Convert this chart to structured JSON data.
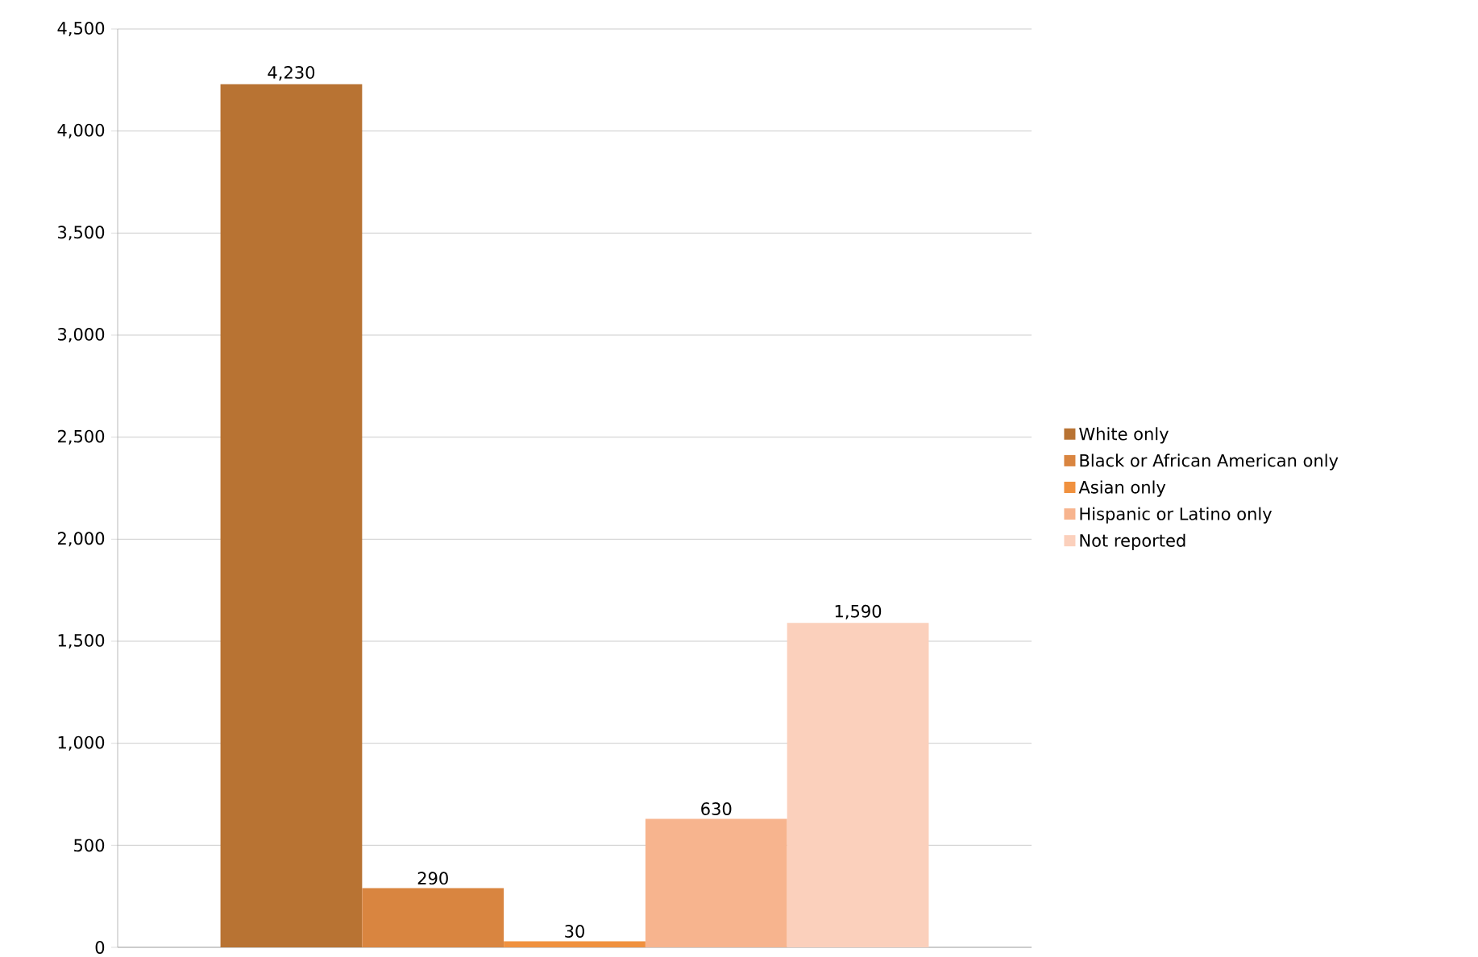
{
  "chart_data": {
    "type": "bar",
    "categories": [
      null
    ],
    "series": [
      {
        "name": "White only",
        "color": "#b87333",
        "values": [
          4230
        ],
        "value_labels": [
          "4,230"
        ]
      },
      {
        "name": "Black or African American only",
        "color": "#d98540",
        "values": [
          290
        ],
        "value_labels": [
          "290"
        ]
      },
      {
        "name": "Asian only",
        "color": "#f0913f",
        "values": [
          30
        ],
        "value_labels": [
          "30"
        ]
      },
      {
        "name": "Hispanic or Latino only",
        "color": "#f7b48e",
        "values": [
          630
        ],
        "value_labels": [
          "630"
        ]
      },
      {
        "name": "Not reported",
        "color": "#fbd0bc",
        "values": [
          1590
        ],
        "value_labels": [
          "1,590"
        ]
      }
    ],
    "ylim": [
      0,
      4500
    ],
    "yticks": [
      0,
      {
        "value": 500,
        "label": "500"
      },
      {
        "value": 1000,
        "label": "1,000"
      },
      {
        "value": 1500,
        "label": "1,500"
      },
      {
        "value": 2000,
        "label": "2,000"
      },
      {
        "value": 2500,
        "label": "2,500"
      },
      {
        "value": 3000,
        "label": "3,000"
      },
      {
        "value": 3500,
        "label": "3,500"
      },
      {
        "value": 4000,
        "label": "4,000"
      },
      {
        "value": 4500,
        "label": "4,500"
      }
    ],
    "grid": "y",
    "legend": "right"
  }
}
